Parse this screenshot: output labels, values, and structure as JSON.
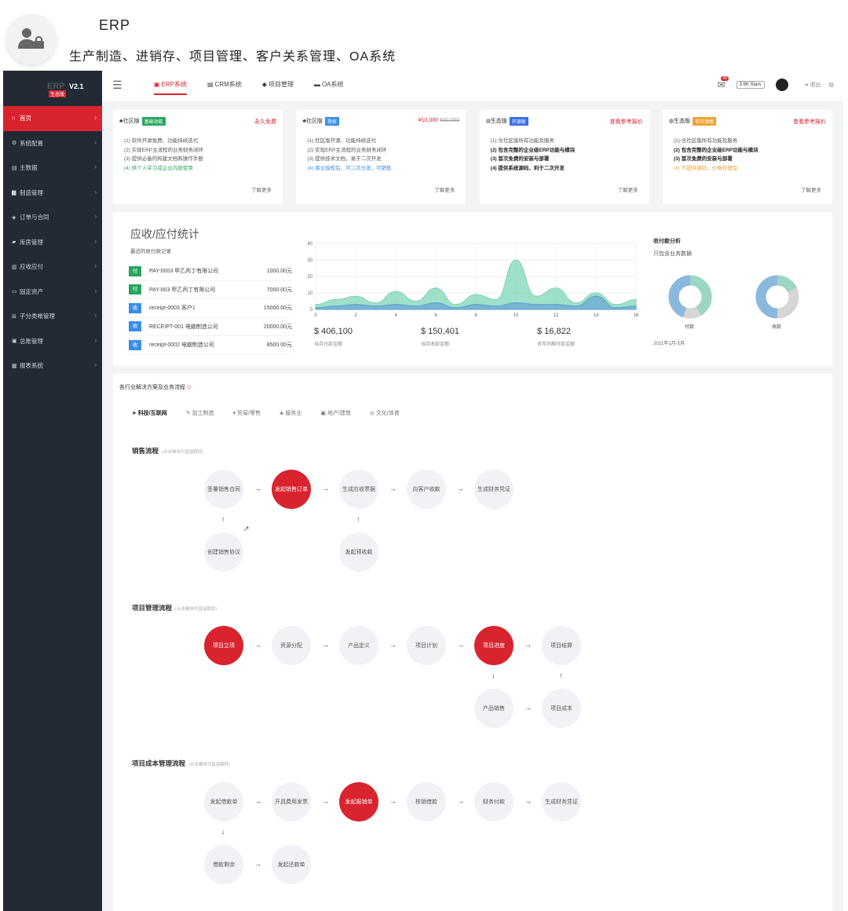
{
  "header": {
    "title": "ERP",
    "subtitle": "生产制造、进销存、项目管理、客户关系管理、OA系统"
  },
  "logo": {
    "ghost_text": "ERP",
    "version": "V2.1",
    "tag": "生态版"
  },
  "sidebar": {
    "items": [
      {
        "label": "首页",
        "icon": "home-icon",
        "active": true
      },
      {
        "label": "系统配置",
        "icon": "gear-icon"
      },
      {
        "label": "主数据",
        "icon": "database-icon"
      },
      {
        "label": "制造管理",
        "icon": "bar-chart-icon"
      },
      {
        "label": "订单与合同",
        "icon": "handshake-icon"
      },
      {
        "label": "库房管理",
        "icon": "truck-icon"
      },
      {
        "label": "应收应付",
        "icon": "bank-icon"
      },
      {
        "label": "固定资产",
        "icon": "monitor-icon"
      },
      {
        "label": "子分类帐管理",
        "icon": "sitemap-icon"
      },
      {
        "label": "总账管理",
        "icon": "ledger-icon"
      },
      {
        "label": "报表系统",
        "icon": "chart-icon"
      }
    ]
  },
  "topbar": {
    "tabs": [
      {
        "label": "ERP系统",
        "icon": "erp-icon",
        "active": true
      },
      {
        "label": "CRM系统",
        "icon": "crm-icon"
      },
      {
        "label": "项目管理",
        "icon": "cube-icon"
      },
      {
        "label": "OA系统",
        "icon": "oa-icon"
      }
    ],
    "mail_badge": "99",
    "stars": "3.9K Stars",
    "logout": "退出"
  },
  "cards": [
    {
      "edition": "社区版",
      "label": "基础功能",
      "label_color": "#2aa55e",
      "price": "永久免费",
      "price_old": "",
      "lines": [
        "(1) 软件开源免费、功能持续迭代",
        "(2) 实现ERP主流程的业务财务闭环",
        "(3) 提供必备的构建文档和操作手册",
        "(4) 供个人学习或企业内部使用"
      ],
      "more": "了解更多"
    },
    {
      "edition": "社区版",
      "label": "授权",
      "label_color": "#3a8ee6",
      "price": "¥10,000",
      "price_old": "¥30,000",
      "lines": [
        "(1) 社区版开源、功能持续迭代",
        "(2) 实现ERP主流程的业务财务闭环",
        "(3) 提供技术文档，易于二次开发",
        "(4) 商业授权后，可二次分发，可销售"
      ],
      "more": "了解更多"
    },
    {
      "edition": "生态版",
      "label": "开源版",
      "label_color": "#3a6ee6",
      "price": "查看参考报价",
      "price_old": "",
      "lines": [
        "(1) 含社区版所有功能及服务",
        "(2) 包含完整的企业级ERP功能与模块",
        "(3) 首次免费的安装与部署",
        "(4) 提供系统源码，利于二次开发"
      ],
      "more": "了解更多"
    },
    {
      "edition": "生态版",
      "label": "非开源版",
      "label_color": "#f0a030",
      "price": "查看参考报价",
      "price_old": "",
      "lines": [
        "(1) 含社区版所有功能及服务",
        "(2) 包含完整的企业级ERP功能与模块",
        "(3) 首次免费的安装与部署",
        "(4) 不提供源码，价格较便宜"
      ],
      "more": "了解更多"
    }
  ],
  "stats": {
    "title": "应收/应付统计",
    "subtitle": "最近的收付款记录",
    "records": [
      {
        "tag": "付",
        "tag_color": "#2aa55e",
        "name": "PAY-0003 甲乙丙丁有限公司",
        "amount": "1000.00元"
      },
      {
        "tag": "付",
        "tag_color": "#2aa55e",
        "name": "PAY-003 甲乙丙丁有限公司",
        "amount": "7000.00元"
      },
      {
        "tag": "收",
        "tag_color": "#3a8ee6",
        "name": "receipt-0003 客户1",
        "amount": "15000.00元"
      },
      {
        "tag": "收",
        "tag_color": "#3a8ee6",
        "name": "RECEIPT-001 电脑制造公司",
        "amount": "20000.00元"
      },
      {
        "tag": "收",
        "tag_color": "#3a8ee6",
        "name": "receipt-0002 电脑制造公司",
        "amount": "8500.00元"
      }
    ],
    "totals": [
      {
        "value": "$ 406,100",
        "caption": "当月付款金额"
      },
      {
        "value": "$ 150,401",
        "caption": "当月收款金额"
      },
      {
        "value": "$ 16,822",
        "caption": "去年同期付款金额"
      }
    ],
    "analysis_title": "收付款分析",
    "analysis_sub": "只包含业务数据",
    "donut_labels": [
      "付款",
      "收款"
    ],
    "period": "2021年1月-5月"
  },
  "chart_data": {
    "type": "area",
    "x": [
      0,
      1,
      2,
      3,
      4,
      5,
      6,
      7,
      8,
      9,
      10,
      11,
      12,
      13,
      14,
      15,
      16
    ],
    "x_ticks": [
      0,
      2,
      4,
      6,
      8,
      10,
      12,
      14,
      16
    ],
    "y_ticks": [
      0,
      10,
      20,
      30,
      40
    ],
    "ylim": [
      0,
      40
    ],
    "xlim": [
      0,
      16
    ],
    "series": [
      {
        "color": "#7fd6b8",
        "values": [
          3,
          6,
          8,
          4,
          11,
          5,
          13,
          3,
          9,
          6,
          30,
          8,
          13,
          4,
          10,
          3,
          6
        ]
      },
      {
        "color": "#5b9bd5",
        "values": [
          1,
          2,
          3,
          2,
          3,
          2,
          4,
          1,
          3,
          2,
          4,
          3,
          3,
          2,
          8,
          1,
          2
        ]
      }
    ]
  },
  "flows": {
    "heading": "各行业解决方案及业务流程",
    "tabs": [
      "科技/互联网",
      "加工制造",
      "贸易/零售",
      "服务业",
      "地产/建筑",
      "文化/体育"
    ],
    "hint": "(点击模块可直接跳转)",
    "sales": {
      "title": "销售流程",
      "nodes": [
        "签署销售合同",
        "发起销售订单",
        "生成应收票据",
        "向客户收款",
        "生成财务凭证",
        "创建销售协议",
        "发起预收款"
      ]
    },
    "project": {
      "title": "项目管理流程",
      "nodes": [
        "项目立项",
        "资源分配",
        "产品定义",
        "项目计划",
        "项目进度",
        "项目结算",
        "产品销售",
        "项目成本"
      ]
    },
    "cost": {
      "title": "项目成本管理流程",
      "nodes": [
        "发起借款单",
        "开具费用发票",
        "发起报销单",
        "核销借款",
        "财务付款",
        "生成财务凭证",
        "借款剩余",
        "发起还款单"
      ]
    }
  }
}
